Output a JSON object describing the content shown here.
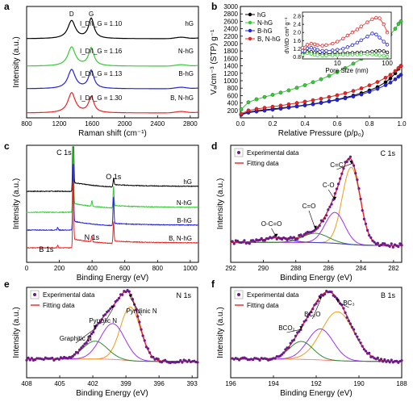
{
  "colors": {
    "hG": "#000000",
    "N-hG": "#33cc33",
    "B-hG": "#2222dd",
    "B, N-hG": "#ee2222",
    "fit_total": "#ee2222",
    "points": "#6a1b8a",
    "comp_orange": "#f39a1c",
    "comp_purple": "#9b30ff",
    "comp_green": "#2e8b2e",
    "comp_blue": "#3b3bd1",
    "baseline": "#ff6666"
  },
  "chart_data": [
    {
      "panel": "a",
      "type": "line",
      "xlabel": "Raman shift (cm⁻¹)",
      "ylabel": "Intensity (a.u.)",
      "xlim": [
        800,
        2900
      ],
      "xticks": [
        800,
        1200,
        1600,
        2000,
        2400,
        2800
      ],
      "peak_labels": [
        "D",
        "G"
      ],
      "peak_positions": [
        1350,
        1590
      ],
      "ratio_prefix": "I_D/I_G",
      "series": [
        {
          "name": "hG",
          "ratio": "1.10",
          "D_height": 0.85,
          "G_height": 0.95
        },
        {
          "name": "N-hG",
          "ratio": "1.16",
          "D_height": 0.9,
          "G_height": 0.85
        },
        {
          "name": "B-hG",
          "ratio": "1.13",
          "D_height": 0.9,
          "G_height": 0.85
        },
        {
          "name": "B, N-hG",
          "ratio": "1.30",
          "D_height": 0.95,
          "G_height": 0.75
        }
      ]
    },
    {
      "panel": "b",
      "type": "line",
      "xlabel": "Relative Pressure (p/p₀)",
      "ylabel": "Vₐ/cm⁻³ (STP) g⁻¹",
      "xlim": [
        0,
        1.0
      ],
      "ylim": [
        0,
        3000
      ],
      "xticks": [
        0.0,
        0.2,
        0.4,
        0.6,
        0.8,
        1.0
      ],
      "yticks": [
        200,
        400,
        600,
        800,
        1000,
        1200,
        1400,
        1600,
        1800,
        2000,
        2200,
        2400,
        2600,
        2800,
        3000
      ],
      "legend": [
        "hG",
        "N-hG",
        "B-hG",
        "B, N-hG"
      ],
      "isotherm_x": [
        0.005,
        0.05,
        0.1,
        0.15,
        0.2,
        0.25,
        0.3,
        0.35,
        0.4,
        0.45,
        0.5,
        0.55,
        0.6,
        0.65,
        0.7,
        0.75,
        0.8,
        0.85,
        0.9,
        0.93,
        0.96,
        0.98,
        0.995
      ],
      "series": [
        {
          "name": "hG",
          "values": [
            90,
            160,
            190,
            215,
            240,
            265,
            290,
            315,
            345,
            375,
            410,
            450,
            495,
            545,
            600,
            665,
            740,
            830,
            960,
            1060,
            1200,
            1320,
            1400
          ]
        },
        {
          "name": "N-hG",
          "values": [
            230,
            420,
            500,
            560,
            620,
            680,
            740,
            810,
            880,
            960,
            1040,
            1130,
            1230,
            1340,
            1460,
            1590,
            1740,
            1910,
            2110,
            2240,
            2400,
            2530,
            2600
          ]
        },
        {
          "name": "B-hG",
          "values": [
            80,
            140,
            170,
            195,
            220,
            245,
            275,
            305,
            335,
            365,
            400,
            440,
            480,
            525,
            575,
            630,
            700,
            780,
            880,
            950,
            1040,
            1110,
            1160
          ]
        },
        {
          "name": "B, N-hG",
          "values": [
            110,
            200,
            240,
            270,
            300,
            330,
            365,
            400,
            435,
            475,
            515,
            560,
            610,
            665,
            725,
            795,
            875,
            965,
            1080,
            1160,
            1260,
            1340,
            1400
          ]
        }
      ],
      "inset": {
        "xlabel": "Pore Size (nm)",
        "ylabel": "dV/dD cm³ g⁻¹",
        "xscale": "log",
        "xlim": [
          2,
          120
        ],
        "xticks": [
          10,
          100
        ],
        "ylim": [
          0.7,
          3.0
        ],
        "yticks": [
          0.8,
          1.2,
          1.6,
          2.0,
          2.4,
          2.8
        ],
        "x": [
          2,
          2.5,
          3,
          3.5,
          4,
          5,
          6,
          8,
          10,
          13,
          16,
          20,
          25,
          30,
          40,
          50,
          60,
          70,
          85,
          100
        ],
        "series": [
          {
            "name": "hG",
            "values": [
              0.95,
              1.05,
              1.05,
              1.0,
              0.97,
              0.95,
              0.95,
              0.96,
              0.97,
              0.98,
              0.99,
              1.0,
              1.01,
              1.02,
              1.04,
              1.06,
              1.08,
              1.1,
              1.08,
              1.02
            ]
          },
          {
            "name": "N-hG",
            "values": [
              0.9,
              0.98,
              0.95,
              0.9,
              0.88,
              0.87,
              0.87,
              0.88,
              0.89,
              0.9,
              0.9,
              0.91,
              0.92,
              0.93,
              0.93,
              0.92,
              0.9,
              0.88,
              0.86,
              0.82
            ]
          },
          {
            "name": "B-hG",
            "values": [
              1.1,
              1.22,
              1.25,
              1.2,
              1.15,
              1.1,
              1.1,
              1.12,
              1.15,
              1.2,
              1.28,
              1.38,
              1.5,
              1.62,
              1.8,
              1.95,
              1.9,
              1.75,
              1.55,
              1.4
            ]
          },
          {
            "name": "B, N-hG",
            "values": [
              1.25,
              1.4,
              1.45,
              1.42,
              1.38,
              1.35,
              1.38,
              1.45,
              1.55,
              1.7,
              1.85,
              2.0,
              2.15,
              2.3,
              2.5,
              2.65,
              2.72,
              2.7,
              2.4,
              2.0
            ]
          }
        ]
      }
    },
    {
      "panel": "c",
      "type": "line",
      "xlabel": "Binding Energy (eV)",
      "ylabel": "Intensity (a.u.)",
      "xlim": [
        0,
        1050
      ],
      "xticks": [
        0,
        200,
        400,
        600,
        800,
        1000
      ],
      "peak_labels": [
        "C 1s",
        "O 1s",
        "N 1s",
        "B 1s"
      ],
      "series": [
        {
          "name": "hG",
          "C": 1.0,
          "O": 0.08,
          "N": 0.0,
          "B": 0.0
        },
        {
          "name": "N-hG",
          "C": 0.7,
          "O": 0.22,
          "N": 0.06,
          "B": 0.0
        },
        {
          "name": "B-hG",
          "C": 0.7,
          "O": 0.3,
          "N": 0.0,
          "B": 0.03
        },
        {
          "name": "B, N-hG",
          "C": 0.7,
          "O": 0.22,
          "N": 0.07,
          "B": 0.03
        }
      ]
    },
    {
      "panel": "d",
      "type": "scatter",
      "title": "C 1s",
      "xlabel": "Binding Energy (eV)",
      "ylabel": "Intensity (a.u.)",
      "xlim": [
        292,
        281.5
      ],
      "xticks": [
        292,
        290,
        288,
        286,
        284,
        282
      ],
      "legend": [
        "Experimental data",
        "Fitting data"
      ],
      "components": [
        {
          "name": "C=C",
          "center": 284.6,
          "height": 1.0,
          "width": 0.55,
          "color": "comp_orange"
        },
        {
          "name": "C-O",
          "center": 285.6,
          "height": 0.4,
          "width": 0.6,
          "color": "comp_purple"
        },
        {
          "name": "C=O",
          "center": 286.8,
          "height": 0.12,
          "width": 0.8,
          "color": "comp_green"
        },
        {
          "name": "O-C=O",
          "center": 289.2,
          "height": 0.06,
          "width": 0.8,
          "color": "comp_blue"
        }
      ]
    },
    {
      "panel": "e",
      "type": "scatter",
      "title": "N 1s",
      "xlabel": "Binding Energy (eV)",
      "ylabel": "Intensity (a.u.)",
      "xlim": [
        408,
        392.5
      ],
      "xticks": [
        408,
        405,
        402,
        399,
        396,
        393
      ],
      "legend": [
        "Experimental data",
        "Fitting data"
      ],
      "components": [
        {
          "name": "Pyridinic N",
          "center": 398.6,
          "height": 0.9,
          "width": 0.9,
          "color": "comp_orange"
        },
        {
          "name": "Pyrrolic N",
          "center": 400.2,
          "height": 0.6,
          "width": 1.1,
          "color": "comp_purple"
        },
        {
          "name": "Graphitic N",
          "center": 401.8,
          "height": 0.3,
          "width": 1.1,
          "color": "comp_green"
        }
      ]
    },
    {
      "panel": "f",
      "type": "scatter",
      "title": "B 1s",
      "xlabel": "Binding Energy (eV)",
      "ylabel": "Intensity (a.u.)",
      "xlim": [
        196,
        188
      ],
      "xticks": [
        196,
        194,
        192,
        190,
        188
      ],
      "legend": [
        "Experimental data",
        "Fitting data"
      ],
      "components": [
        {
          "name": "BC₃",
          "center": 191.0,
          "height": 0.82,
          "width": 0.75,
          "color": "comp_orange"
        },
        {
          "name": "BC₂O",
          "center": 191.8,
          "height": 0.52,
          "width": 0.6,
          "color": "comp_purple"
        },
        {
          "name": "BCO₂",
          "center": 192.7,
          "height": 0.3,
          "width": 0.55,
          "color": "comp_green"
        }
      ]
    }
  ]
}
